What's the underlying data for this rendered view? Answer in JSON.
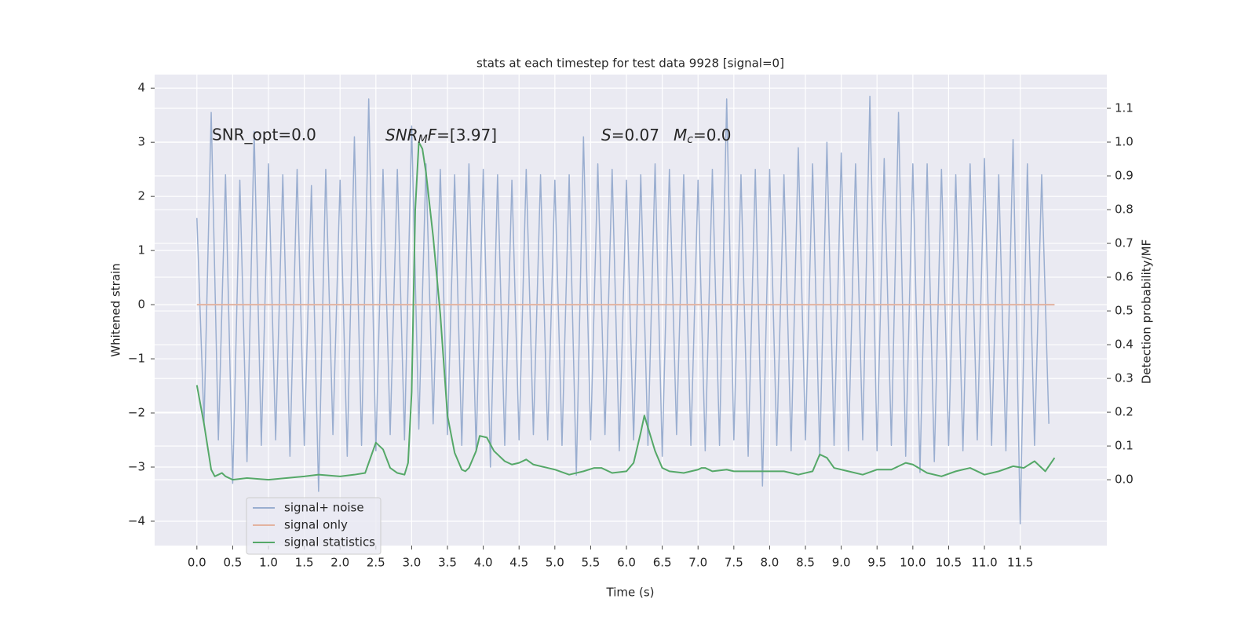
{
  "chart_data": {
    "type": "line",
    "title": "stats at each timestep for test data 9928 [signal=0]",
    "xlabel": "Time (s)",
    "ylabel": "Whitened strain",
    "y2label": "Detection probability/MF",
    "annotations": [
      "SNR_opt=0.0",
      [
        "SNR",
        "M",
        "F",
        "=[3.97]"
      ],
      [
        "S",
        "=0.07"
      ],
      [
        "M",
        "c",
        "=0.0"
      ]
    ],
    "xlim": [
      -0.59,
      12.71
    ],
    "ylim": [
      -4.45,
      4.25
    ],
    "y2lim": [
      -0.195,
      1.2
    ],
    "xticks": [
      {
        "value": 0,
        "label": "0.0"
      },
      0.5,
      {
        "value": 1,
        "label": "1.0"
      },
      1.5,
      {
        "value": 2,
        "label": "2.0"
      },
      2.5,
      {
        "value": 3,
        "label": "3.0"
      },
      3.5,
      {
        "value": 4,
        "label": "4.0"
      },
      4.5,
      {
        "value": 5,
        "label": "5.0"
      },
      5.5,
      {
        "value": 6,
        "label": "6.0"
      },
      6.5,
      {
        "value": 7,
        "label": "7.0"
      },
      7.5,
      {
        "value": 8,
        "label": "8.0"
      },
      8.5,
      {
        "value": 9,
        "label": "9.0"
      },
      9.5,
      {
        "value": 10,
        "label": "10.0"
      },
      10.5,
      {
        "value": 11,
        "label": "11.0"
      },
      11.5
    ],
    "yticks": [
      {
        "value": -4,
        "label": "−4"
      },
      {
        "value": -3,
        "label": "−3"
      },
      {
        "value": -2,
        "label": "−2"
      },
      {
        "value": -1,
        "label": "−1"
      },
      0,
      1,
      2,
      3,
      4
    ],
    "y2ticks": [
      {
        "value": 0,
        "label": "0.0"
      },
      0.1,
      0.2,
      0.3,
      0.4,
      0.5,
      0.6,
      0.7,
      0.8,
      0.9,
      {
        "value": 1,
        "label": "1.0"
      },
      1.1
    ],
    "grid": true,
    "legend": "lower left",
    "series": [
      {
        "name": "signal+ noise",
        "color": "#9aaed0",
        "x": [
          0.0,
          0.1,
          0.2,
          0.3,
          0.4,
          0.5,
          0.6,
          0.7,
          0.8,
          0.9,
          1.0,
          1.1,
          1.2,
          1.3,
          1.4,
          1.5,
          1.6,
          1.7,
          1.8,
          1.9,
          2.0,
          2.1,
          2.2,
          2.3,
          2.4,
          2.5,
          2.6,
          2.7,
          2.8,
          2.9,
          3.0,
          3.1,
          3.2,
          3.3,
          3.4,
          3.5,
          3.6,
          3.7,
          3.8,
          3.9,
          4.0,
          4.1,
          4.2,
          4.3,
          4.4,
          4.5,
          4.6,
          4.7,
          4.8,
          4.9,
          5.0,
          5.1,
          5.2,
          5.3,
          5.4,
          5.5,
          5.6,
          5.7,
          5.8,
          5.9,
          6.0,
          6.1,
          6.2,
          6.3,
          6.4,
          6.5,
          6.6,
          6.7,
          6.8,
          6.9,
          7.0,
          7.1,
          7.2,
          7.3,
          7.4,
          7.5,
          7.6,
          7.7,
          7.8,
          7.9,
          8.0,
          8.1,
          8.2,
          8.3,
          8.4,
          8.5,
          8.6,
          8.7,
          8.8,
          8.9,
          9.0,
          9.1,
          9.2,
          9.3,
          9.4,
          9.5,
          9.6,
          9.7,
          9.8,
          9.9,
          10.0,
          10.1,
          10.2,
          10.3,
          10.4,
          10.5,
          10.6,
          10.7,
          10.8,
          10.9,
          11.0,
          11.1,
          11.2,
          11.3,
          11.4,
          11.5,
          11.6,
          11.7,
          11.8,
          11.9
        ],
        "values": [
          1.6,
          -2.2,
          3.55,
          -2.5,
          2.4,
          -3.3,
          2.3,
          -2.9,
          3.2,
          -2.6,
          2.6,
          -2.5,
          2.4,
          -2.8,
          2.5,
          -2.6,
          2.2,
          -3.45,
          2.5,
          -2.4,
          2.3,
          -2.8,
          3.1,
          -2.6,
          3.8,
          -2.7,
          2.5,
          -2.4,
          2.5,
          -2.5,
          3.3,
          -2.3,
          2.6,
          -2.2,
          2.5,
          -2.4,
          2.4,
          -2.6,
          2.6,
          -2.7,
          2.5,
          -3.0,
          2.4,
          -2.6,
          2.3,
          -2.5,
          2.5,
          -2.4,
          2.4,
          -2.5,
          2.3,
          -2.6,
          2.4,
          -3.15,
          3.1,
          -2.5,
          2.6,
          -2.4,
          2.5,
          -2.7,
          2.3,
          -2.5,
          2.4,
          -2.6,
          2.6,
          -2.8,
          2.5,
          -2.4,
          2.4,
          -2.6,
          2.3,
          -2.7,
          2.5,
          -2.6,
          3.8,
          -2.5,
          2.4,
          -2.8,
          2.5,
          -3.35,
          2.5,
          -2.6,
          2.4,
          -2.7,
          2.9,
          -2.5,
          2.6,
          -2.8,
          3.0,
          -2.6,
          2.8,
          -2.7,
          2.6,
          -2.5,
          3.85,
          -2.7,
          2.7,
          -2.6,
          3.55,
          -2.8,
          2.6,
          -3.1,
          2.6,
          -2.9,
          2.5,
          -2.6,
          2.4,
          -2.7,
          2.6,
          -2.5,
          2.7,
          -2.6,
          2.4,
          -2.7,
          3.05,
          -4.05,
          2.6,
          -2.6,
          2.4,
          -2.2
        ]
      },
      {
        "name": "signal only",
        "color": "#e3b3a0",
        "x": [
          0.0,
          11.98
        ],
        "values": [
          0,
          0
        ]
      },
      {
        "name": "signal statistics",
        "color": "#55a868",
        "axis": "y2",
        "x": [
          0.0,
          0.1,
          0.2,
          0.25,
          0.3,
          0.35,
          0.4,
          0.5,
          0.7,
          1.0,
          1.5,
          1.7,
          2.0,
          2.2,
          2.35,
          2.4,
          2.5,
          2.6,
          2.7,
          2.8,
          2.9,
          2.95,
          3.0,
          3.05,
          3.1,
          3.15,
          3.2,
          3.3,
          3.4,
          3.5,
          3.6,
          3.7,
          3.75,
          3.8,
          3.9,
          3.95,
          4.05,
          4.15,
          4.3,
          4.4,
          4.5,
          4.6,
          4.7,
          4.9,
          5.0,
          5.2,
          5.4,
          5.55,
          5.65,
          5.8,
          6.0,
          6.1,
          6.2,
          6.25,
          6.3,
          6.4,
          6.5,
          6.6,
          6.8,
          7.0,
          7.05,
          7.1,
          7.2,
          7.4,
          7.5,
          7.7,
          8.0,
          8.2,
          8.4,
          8.6,
          8.7,
          8.8,
          8.9,
          9.1,
          9.3,
          9.5,
          9.7,
          9.9,
          10.0,
          10.2,
          10.4,
          10.6,
          10.8,
          11.0,
          11.2,
          11.4,
          11.55,
          11.7,
          11.85,
          11.98
        ],
        "values": [
          0.28,
          0.165,
          0.03,
          0.01,
          0.015,
          0.02,
          0.01,
          0.0,
          0.005,
          0.0,
          0.01,
          0.015,
          0.01,
          0.015,
          0.02,
          0.05,
          0.11,
          0.09,
          0.035,
          0.02,
          0.015,
          0.05,
          0.26,
          0.8,
          1.0,
          0.98,
          0.91,
          0.72,
          0.49,
          0.19,
          0.08,
          0.03,
          0.025,
          0.035,
          0.085,
          0.13,
          0.125,
          0.085,
          0.055,
          0.045,
          0.05,
          0.06,
          0.045,
          0.035,
          0.03,
          0.015,
          0.025,
          0.035,
          0.035,
          0.02,
          0.025,
          0.05,
          0.14,
          0.19,
          0.155,
          0.085,
          0.035,
          0.025,
          0.02,
          0.03,
          0.035,
          0.035,
          0.025,
          0.03,
          0.025,
          0.025,
          0.025,
          0.025,
          0.015,
          0.025,
          0.075,
          0.065,
          0.035,
          0.025,
          0.015,
          0.03,
          0.03,
          0.05,
          0.045,
          0.02,
          0.01,
          0.025,
          0.035,
          0.015,
          0.025,
          0.04,
          0.035,
          0.055,
          0.025,
          0.065
        ]
      }
    ]
  }
}
